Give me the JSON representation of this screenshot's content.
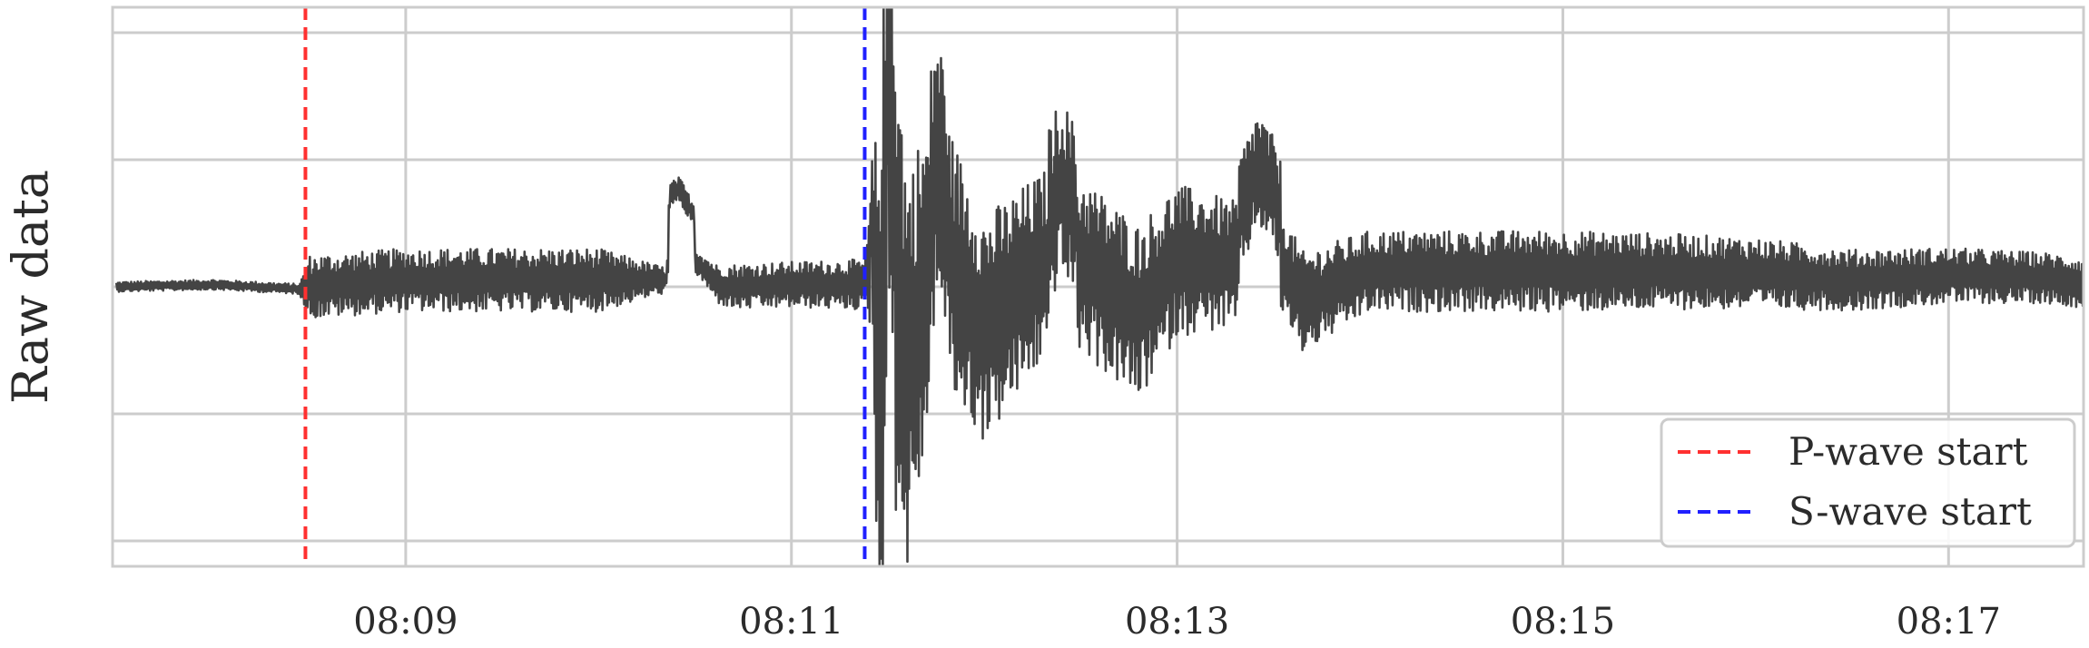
{
  "chart_data": {
    "type": "line",
    "title": "",
    "xlabel": "",
    "ylabel": "Raw data",
    "x_ticks": [
      "08:09",
      "08:11",
      "08:13",
      "08:15",
      "08:17"
    ],
    "x_tick_minutes": [
      9,
      11,
      13,
      15,
      17
    ],
    "xlim_minutes": [
      7.48,
      17.7
    ],
    "ylim": [
      -2.2,
      2.2
    ],
    "y_gridlines": [
      2.0,
      1.0,
      0,
      -1.0,
      -2.0
    ],
    "y_tick_labels_visible": false,
    "grid": true,
    "legend_position": "lower-right",
    "series": [
      {
        "kind": "waveform",
        "color": "#444444",
        "x_minutes": [
          7.5,
          8.0,
          8.45,
          8.5,
          9.0,
          9.5,
          10.0,
          10.35,
          10.37,
          10.42,
          10.5,
          10.62,
          10.7,
          11.0,
          11.38,
          11.42,
          11.45,
          11.5,
          11.6,
          11.75,
          12.0,
          12.4,
          12.8,
          13.0,
          13.3,
          13.42,
          13.52,
          13.58,
          13.65,
          14.0,
          14.5,
          15.0,
          15.5,
          16.0,
          16.5,
          17.0,
          17.5,
          17.7
        ],
        "y": [
          0.0,
          0.05,
          -0.05,
          0.0,
          0.15,
          0.15,
          0.15,
          0.15,
          0.8,
          0.85,
          0.6,
          0.05,
          0.0,
          0.05,
          0.05,
          0.7,
          -2.1,
          2.15,
          -1.9,
          1.15,
          -0.95,
          0.9,
          -0.6,
          0.6,
          0.5,
          1.05,
          0.75,
          0.25,
          -0.35,
          0.35,
          0.35,
          0.35,
          0.35,
          0.3,
          0.15,
          0.25,
          0.2,
          0.1
        ],
        "amplitude": [
          0.04,
          0.04,
          0.04,
          0.25,
          0.25,
          0.25,
          0.25,
          0.1,
          0.1,
          0.1,
          0.1,
          0.15,
          0.18,
          0.18,
          0.2,
          0.6,
          2.2,
          2.2,
          1.6,
          1.1,
          0.9,
          0.7,
          0.7,
          0.6,
          0.5,
          0.45,
          0.45,
          0.4,
          0.4,
          0.32,
          0.32,
          0.32,
          0.3,
          0.28,
          0.24,
          0.22,
          0.2,
          0.2
        ]
      }
    ],
    "markers": [
      {
        "name": "P-wave start",
        "x_minutes": 8.48,
        "color": "#ff3030",
        "style": "dashed"
      },
      {
        "name": "S-wave start",
        "x_minutes": 11.38,
        "color": "#2020ff",
        "style": "dashed"
      }
    ]
  }
}
